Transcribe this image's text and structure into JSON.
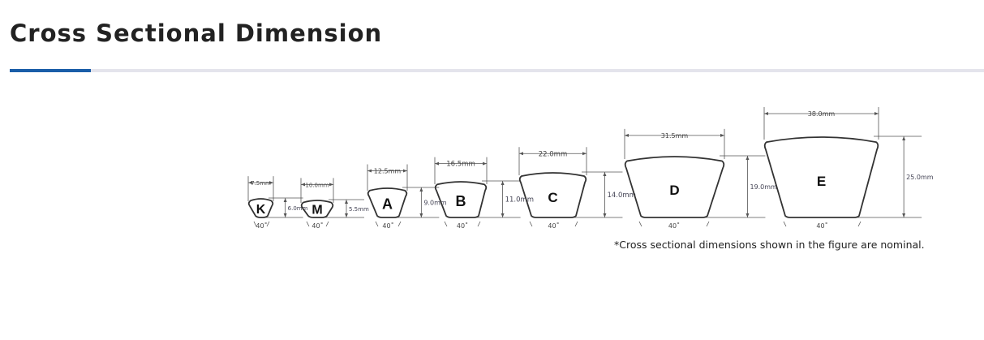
{
  "page": {
    "title": "Cross Sectional Dimension",
    "accent_color": "#1a5ea8",
    "note": "*Cross sectional dimensions shown in the figure are nominal."
  },
  "figure": {
    "angle_label": "40˚",
    "belts": [
      {
        "label": "K",
        "width": "7.5mm",
        "height": "6.0mm"
      },
      {
        "label": "M",
        "width": "10.0mm",
        "height": "5.5mm"
      },
      {
        "label": "A",
        "width": "12.5mm",
        "height": "9.0mm"
      },
      {
        "label": "B",
        "width": "16.5mm",
        "height": "11.0mm"
      },
      {
        "label": "C",
        "width": "22.0mm",
        "height": "14.0mm"
      },
      {
        "label": "D",
        "width": "31.5mm",
        "height": "19.0mm"
      },
      {
        "label": "E",
        "width": "38.0mm",
        "height": "25.0mm"
      }
    ]
  }
}
